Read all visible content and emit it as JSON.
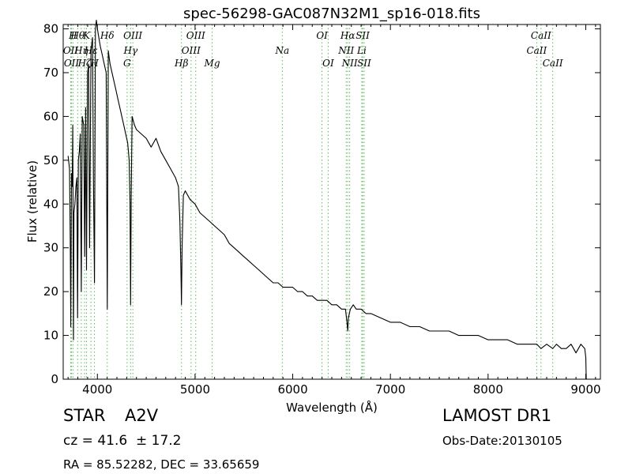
{
  "chart_data": {
    "type": "line",
    "title": "spec-56298-GAC087N32M1_sp16-018.fits",
    "xlabel": "Wavelength (Å)",
    "ylabel": "Flux (relative)",
    "xlim": [
      3650,
      9150
    ],
    "ylim": [
      0,
      81
    ],
    "xticks": [
      4000,
      5000,
      6000,
      7000,
      8000,
      9000
    ],
    "yticks": [
      0,
      10,
      20,
      30,
      40,
      50,
      60,
      70,
      80
    ],
    "grid": false,
    "series": [
      {
        "x": [
          3700,
          3715,
          3722,
          3728,
          3735,
          3742,
          3748,
          3755,
          3760,
          3770,
          3780,
          3790,
          3797,
          3805,
          3815,
          3825,
          3835,
          3845,
          3860,
          3870,
          3880,
          3889,
          3900,
          3910,
          3920,
          3935,
          3950,
          3960,
          3970,
          3980,
          3990,
          4000,
          4015,
          4030,
          4050,
          4070,
          4090,
          4101,
          4112,
          4130,
          4150,
          4170,
          4190,
          4210,
          4230,
          4250,
          4270,
          4290,
          4310,
          4325,
          4334,
          4340,
          4346,
          4355,
          4380,
          4400,
          4450,
          4500,
          4550,
          4600,
          4650,
          4700,
          4750,
          4800,
          4830,
          4845,
          4855,
          4861,
          4867,
          4880,
          4900,
          4950,
          5000,
          5050,
          5100,
          5150,
          5200,
          5250,
          5300,
          5350,
          5400,
          5450,
          5500,
          5550,
          5600,
          5650,
          5700,
          5750,
          5800,
          5850,
          5900,
          5950,
          6000,
          6050,
          6100,
          6150,
          6200,
          6250,
          6300,
          6350,
          6400,
          6450,
          6500,
          6540,
          6555,
          6563,
          6570,
          6590,
          6620,
          6650,
          6700,
          6750,
          6800,
          6900,
          7000,
          7100,
          7200,
          7300,
          7400,
          7500,
          7600,
          7700,
          7800,
          7900,
          8000,
          8100,
          8200,
          8300,
          8400,
          8500,
          8542,
          8600,
          8662,
          8700,
          8750,
          8800,
          8850,
          8900,
          8950,
          8990,
          9000,
          9005
        ],
        "y": [
          51,
          48,
          32,
          12,
          47,
          44,
          58,
          9,
          38,
          40,
          44,
          46,
          14,
          50,
          52,
          56,
          20,
          60,
          58,
          28,
          62,
          25,
          70,
          72,
          30,
          75,
          78,
          45,
          22,
          80,
          82,
          80,
          78,
          76,
          74,
          72,
          70,
          16,
          75,
          72,
          70,
          68,
          66,
          64,
          62,
          60,
          58,
          56,
          54,
          50,
          40,
          17,
          42,
          60,
          58,
          57,
          56,
          55,
          53,
          55,
          52,
          50,
          48,
          46,
          44,
          36,
          25,
          17,
          30,
          42,
          43,
          41,
          40,
          38,
          37,
          36,
          35,
          34,
          33,
          31,
          30,
          29,
          28,
          27,
          26,
          25,
          24,
          23,
          22,
          22,
          21,
          21,
          21,
          20,
          20,
          19,
          19,
          18,
          18,
          18,
          17,
          17,
          16,
          16,
          13,
          11,
          14,
          16,
          17,
          16,
          16,
          15,
          15,
          14,
          13,
          13,
          12,
          12,
          11,
          11,
          11,
          10,
          10,
          10,
          9,
          9,
          9,
          8,
          8,
          8,
          7,
          8,
          7,
          8,
          7,
          7,
          8,
          6,
          8,
          7,
          5,
          0
        ]
      }
    ],
    "spectral_lines": [
      {
        "wl": 3727,
        "label": "OII",
        "row": 1
      },
      {
        "wl": 3735,
        "label": "OII",
        "row": 2
      },
      {
        "wl": 3750,
        "label": "H",
        "row": 0
      },
      {
        "wl": 3798,
        "label": "Hθ",
        "row": 0
      },
      {
        "wl": 3835,
        "label": "Hη",
        "row": 1
      },
      {
        "wl": 3869,
        "label": "Hζ",
        "row": 2
      },
      {
        "wl": 3889,
        "label": "K",
        "row": 0
      },
      {
        "wl": 3934,
        "label": "Hε",
        "row": 1
      },
      {
        "wl": 3970,
        "label": "H",
        "row": 2
      },
      {
        "wl": 4101,
        "label": "Hδ",
        "row": 0
      },
      {
        "wl": 4304,
        "label": "G",
        "row": 2
      },
      {
        "wl": 4340,
        "label": "Hγ",
        "row": 1
      },
      {
        "wl": 4363,
        "label": "OIII",
        "row": 0
      },
      {
        "wl": 4861,
        "label": "Hβ",
        "row": 2
      },
      {
        "wl": 4959,
        "label": "OIII",
        "row": 1
      },
      {
        "wl": 5007,
        "label": "OIII",
        "row": 0
      },
      {
        "wl": 5175,
        "label": "Mg",
        "row": 2
      },
      {
        "wl": 5893,
        "label": "Na",
        "row": 1
      },
      {
        "wl": 6300,
        "label": "OI",
        "row": 0
      },
      {
        "wl": 6363,
        "label": "OI",
        "row": 2
      },
      {
        "wl": 6548,
        "label": "NII",
        "row": 1
      },
      {
        "wl": 6563,
        "label": "Hα",
        "row": 0
      },
      {
        "wl": 6583,
        "label": "NII",
        "row": 2
      },
      {
        "wl": 6707,
        "label": "Li",
        "row": 1
      },
      {
        "wl": 6716,
        "label": "SII",
        "row": 0
      },
      {
        "wl": 6731,
        "label": "SII",
        "row": 2
      },
      {
        "wl": 8498,
        "label": "CaII",
        "row": 1
      },
      {
        "wl": 8542,
        "label": "CaII",
        "row": 0
      },
      {
        "wl": 8662,
        "label": "CaII",
        "row": 2
      }
    ]
  },
  "info": {
    "class_label": "STAR",
    "subclass": "A2V",
    "cz_text": "cz = 41.6  ± 17.2",
    "coords_text": "RA = 85.52282, DEC = 33.65659",
    "survey": "LAMOST DR1",
    "obs_date": "Obs-Date:20130105"
  },
  "colors": {
    "spectrum": "#000000",
    "line_marker": "#5cb85c"
  }
}
